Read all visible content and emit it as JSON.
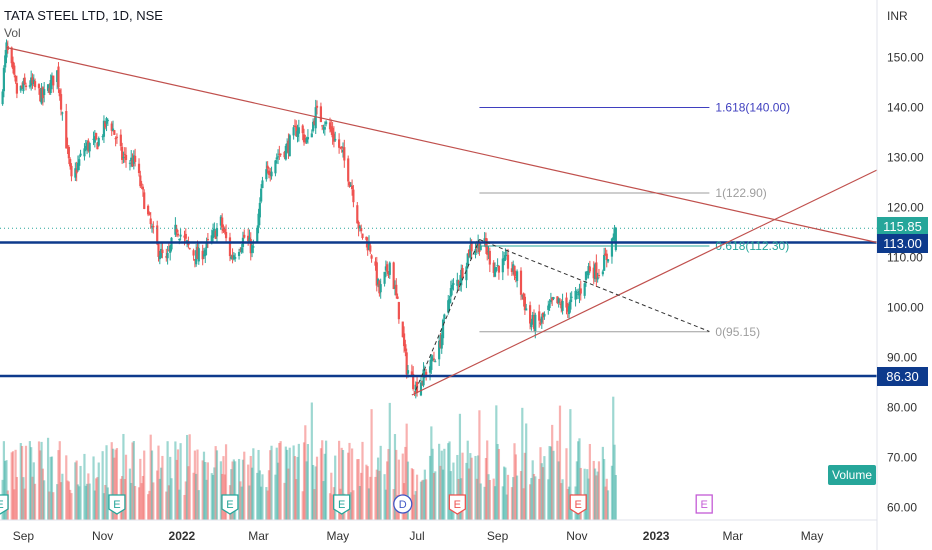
{
  "legend": {
    "title": "TATA STEEL LTD, 1D, NSE",
    "vol": "Vol"
  },
  "price_axis": {
    "unit": "INR"
  },
  "colors": {
    "up": "#26a69a",
    "down": "#ef5350",
    "hline": "#0d3a8c",
    "trend": "#c0504d",
    "fib_ext": "#3f3fbf",
    "fib": "#9e9e9e",
    "fib_618": "#26a69a"
  },
  "price_labels": {
    "current": "115.85",
    "level_113": "113.00",
    "level_86": "86.30"
  },
  "volume_badge": "Volume",
  "event_badges": [
    {
      "label": "E",
      "date": "2021-08-14",
      "kind": "earnings"
    },
    {
      "label": "E",
      "date": "2021-11-12",
      "kind": "earnings"
    },
    {
      "label": "E",
      "date": "2022-02-07",
      "kind": "earnings"
    },
    {
      "label": "E",
      "date": "2022-05-04",
      "kind": "earnings"
    },
    {
      "label": "D",
      "date": "2022-06-20",
      "kind": "dividend"
    },
    {
      "label": "E",
      "date": "2022-08-01",
      "kind": "earnings-miss"
    },
    {
      "label": "E",
      "date": "2022-11-02",
      "kind": "earnings-miss"
    },
    {
      "label": "E",
      "date": "2023-02-07",
      "kind": "upcoming"
    }
  ],
  "chart_data": {
    "type": "candlestick",
    "x_ticks": [
      "Sep",
      "Nov",
      "2022",
      "Mar",
      "May",
      "Jul",
      "Sep",
      "Nov",
      "2023",
      "Mar",
      "May"
    ],
    "x_tick_dates": [
      "2021-09-01",
      "2021-11-01",
      "2022-01-01",
      "2022-03-01",
      "2022-05-01",
      "2022-07-01",
      "2022-09-01",
      "2022-11-01",
      "2023-01-01",
      "2023-03-01",
      "2023-05-01"
    ],
    "y_ticks": [
      60,
      70,
      80,
      90,
      100,
      110,
      120,
      130,
      140,
      150
    ],
    "y_tick_labels": [
      "60.00",
      "70.00",
      "80.00",
      "90.00",
      "100.00",
      "110.00",
      "120.00",
      "130.00",
      "140.00",
      "150.00"
    ],
    "ylim": [
      58.5,
      160.5
    ],
    "x_range": [
      "2021-08-14",
      "2023-06-20"
    ],
    "last_close": 115.85,
    "price_path": [
      [
        "2021-08-14",
        140
      ],
      [
        "2021-08-19",
        152
      ],
      [
        "2021-08-27",
        143
      ],
      [
        "2021-09-06",
        145
      ],
      [
        "2021-09-16",
        142
      ],
      [
        "2021-09-27",
        147
      ],
      [
        "2021-10-08",
        125
      ],
      [
        "2021-10-18",
        132
      ],
      [
        "2021-10-28",
        133
      ],
      [
        "2021-11-06",
        138
      ],
      [
        "2021-11-16",
        130
      ],
      [
        "2021-11-26",
        129
      ],
      [
        "2021-12-06",
        118
      ],
      [
        "2021-12-13",
        112
      ],
      [
        "2021-12-20",
        109
      ],
      [
        "2021-12-28",
        116
      ],
      [
        "2022-01-06",
        112
      ],
      [
        "2022-01-13",
        110
      ],
      [
        "2022-01-20",
        112
      ],
      [
        "2022-01-31",
        117
      ],
      [
        "2022-02-08",
        110
      ],
      [
        "2022-02-18",
        114
      ],
      [
        "2022-02-26",
        111
      ],
      [
        "2022-03-04",
        125
      ],
      [
        "2022-03-14",
        130
      ],
      [
        "2022-03-23",
        132
      ],
      [
        "2022-03-31",
        136
      ],
      [
        "2022-04-08",
        133
      ],
      [
        "2022-04-14",
        139
      ],
      [
        "2022-04-24",
        136
      ],
      [
        "2022-05-04",
        131
      ],
      [
        "2022-05-12",
        124
      ],
      [
        "2022-05-18",
        115
      ],
      [
        "2022-05-26",
        112
      ],
      [
        "2022-06-02",
        103
      ],
      [
        "2022-06-10",
        109
      ],
      [
        "2022-06-17",
        99
      ],
      [
        "2022-06-23",
        88
      ],
      [
        "2022-06-30",
        84
      ],
      [
        "2022-07-08",
        87
      ],
      [
        "2022-07-18",
        92
      ],
      [
        "2022-07-26",
        103
      ],
      [
        "2022-08-03",
        106
      ],
      [
        "2022-08-11",
        112
      ],
      [
        "2022-08-21",
        113
      ],
      [
        "2022-08-29",
        108
      ],
      [
        "2022-09-08",
        109
      ],
      [
        "2022-09-16",
        106
      ],
      [
        "2022-09-26",
        97
      ],
      [
        "2022-10-04",
        97
      ],
      [
        "2022-10-14",
        101
      ],
      [
        "2022-10-24",
        100
      ],
      [
        "2022-11-03",
        103
      ],
      [
        "2022-11-10",
        108
      ],
      [
        "2022-11-17",
        107
      ],
      [
        "2022-11-24",
        110
      ],
      [
        "2022-12-01",
        115.85
      ]
    ],
    "lines": [
      {
        "name": "downtrend",
        "from": [
          "2021-08-19",
          152.0
        ],
        "to": [
          "2023-06-20",
          113.0
        ],
        "style": "solid"
      },
      {
        "name": "uptrend",
        "from": [
          "2022-06-27",
          82.5
        ],
        "to": [
          "2023-06-20",
          127.5
        ],
        "style": "solid"
      },
      {
        "name": "swing-down",
        "from": [
          "2022-08-18",
          113.6
        ],
        "to": [
          "2023-02-11",
          95.2
        ],
        "style": "dashed"
      },
      {
        "name": "swing-up",
        "from": [
          "2022-06-30",
          83.5
        ],
        "to": [
          "2022-08-18",
          113.6
        ],
        "style": "dashed"
      }
    ],
    "horizontal_levels": [
      113.0,
      86.3
    ],
    "fibonacci": [
      {
        "label": "1.618(140.00)",
        "value": 140.0,
        "from": "2022-08-18",
        "to": "2023-02-11"
      },
      {
        "label": "1(122.90)",
        "value": 122.9,
        "from": "2022-08-18",
        "to": "2023-02-11"
      },
      {
        "label": "0.618(112.30)",
        "value": 112.3,
        "from": "2022-08-18",
        "to": "2023-02-11"
      },
      {
        "label": "0(95.15)",
        "value": 95.15,
        "from": "2022-08-18",
        "to": "2023-02-11"
      }
    ]
  }
}
